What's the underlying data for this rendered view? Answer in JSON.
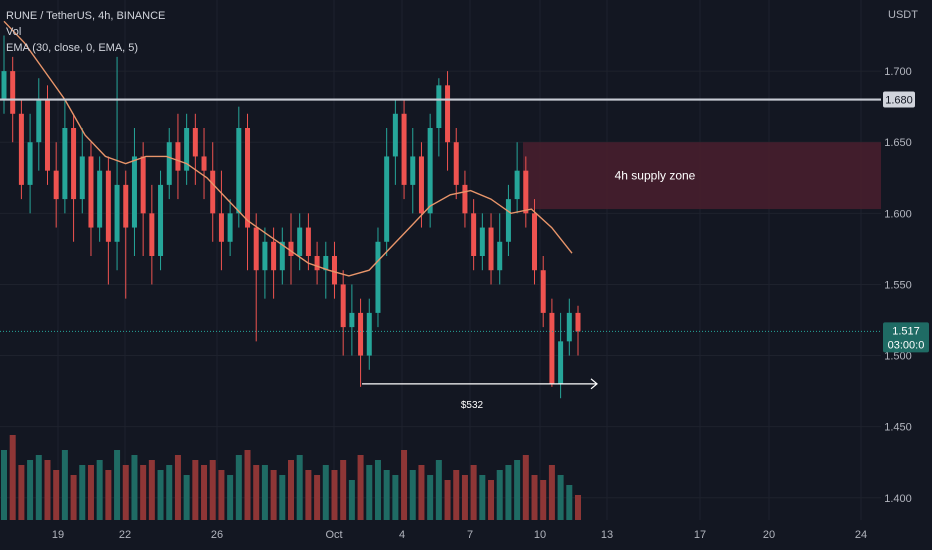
{
  "header": {
    "symbol_line": "RUNE / TetherUS, 4h, BINANCE",
    "volume_label": "Vol",
    "ema_label": "EMA (30, close, 0, EMA, 5)"
  },
  "colors": {
    "background": "#131722",
    "up": "#26a69a",
    "down": "#ef5350",
    "vol_up": "#1f6b64",
    "vol_down": "#8e3636",
    "ema": "#e8956a",
    "resistance": "#c7cbd4",
    "zone": "#4a1f2e",
    "price_badge": "#1f6b64",
    "level_badge": "#d1d4dc"
  },
  "chart_data": {
    "type": "candlestick",
    "currency": "USDT",
    "ylim": [
      1.39,
      1.75
    ],
    "y_ticks": [
      "1.400",
      "1.450",
      "1.500",
      "1.550",
      "1.600",
      "1.650",
      "1.700"
    ],
    "x_tick_labels": [
      "19",
      "22",
      "26",
      "Oct",
      "4",
      "7",
      "10",
      "13",
      "17",
      "20",
      "24"
    ],
    "resistance_level": "1.680",
    "last_price": "1.517",
    "countdown": "03:00:0",
    "zone": {
      "label": "4h supply zone",
      "low": 1.603,
      "high": 1.65
    },
    "support_annotation": "$532",
    "support_level": 1.478,
    "ema_points": [
      1.735,
      1.72,
      1.7,
      1.68,
      1.655,
      1.64,
      1.635,
      1.64,
      1.64,
      1.635,
      1.625,
      1.61,
      1.595,
      1.585,
      1.575,
      1.565,
      1.56,
      1.556,
      1.56,
      1.575,
      1.59,
      1.605,
      1.613,
      1.616,
      1.61,
      1.6,
      1.603,
      1.59,
      1.572
    ],
    "candles": [
      [
        1.68,
        1.7,
        1.725,
        1.67
      ],
      [
        1.7,
        1.67,
        1.71,
        1.65
      ],
      [
        1.67,
        1.62,
        1.68,
        1.61
      ],
      [
        1.62,
        1.65,
        1.67,
        1.6
      ],
      [
        1.65,
        1.68,
        1.695,
        1.63
      ],
      [
        1.68,
        1.63,
        1.69,
        1.62
      ],
      [
        1.63,
        1.61,
        1.65,
        1.59
      ],
      [
        1.61,
        1.66,
        1.68,
        1.6
      ],
      [
        1.66,
        1.61,
        1.67,
        1.58
      ],
      [
        1.61,
        1.64,
        1.66,
        1.6
      ],
      [
        1.64,
        1.59,
        1.65,
        1.57
      ],
      [
        1.59,
        1.63,
        1.64,
        1.58
      ],
      [
        1.63,
        1.58,
        1.64,
        1.55
      ],
      [
        1.58,
        1.62,
        1.71,
        1.56
      ],
      [
        1.62,
        1.59,
        1.63,
        1.54
      ],
      [
        1.59,
        1.64,
        1.66,
        1.57
      ],
      [
        1.64,
        1.6,
        1.65,
        1.57
      ],
      [
        1.6,
        1.57,
        1.62,
        1.55
      ],
      [
        1.57,
        1.62,
        1.63,
        1.56
      ],
      [
        1.62,
        1.65,
        1.66,
        1.61
      ],
      [
        1.65,
        1.63,
        1.67,
        1.61
      ],
      [
        1.63,
        1.66,
        1.67,
        1.62
      ],
      [
        1.66,
        1.64,
        1.67,
        1.62
      ],
      [
        1.64,
        1.63,
        1.66,
        1.61
      ],
      [
        1.63,
        1.6,
        1.65,
        1.58
      ],
      [
        1.6,
        1.58,
        1.63,
        1.56
      ],
      [
        1.58,
        1.6,
        1.61,
        1.57
      ],
      [
        1.6,
        1.66,
        1.675,
        1.59
      ],
      [
        1.66,
        1.59,
        1.67,
        1.56
      ],
      [
        1.59,
        1.56,
        1.6,
        1.51
      ],
      [
        1.56,
        1.58,
        1.59,
        1.54
      ],
      [
        1.58,
        1.56,
        1.59,
        1.54
      ],
      [
        1.56,
        1.58,
        1.59,
        1.55
      ],
      [
        1.58,
        1.57,
        1.6,
        1.55
      ],
      [
        1.57,
        1.59,
        1.6,
        1.56
      ],
      [
        1.59,
        1.57,
        1.6,
        1.56
      ],
      [
        1.57,
        1.56,
        1.58,
        1.55
      ],
      [
        1.56,
        1.57,
        1.58,
        1.54
      ],
      [
        1.57,
        1.55,
        1.58,
        1.54
      ],
      [
        1.55,
        1.52,
        1.56,
        1.5
      ],
      [
        1.52,
        1.53,
        1.55,
        1.5
      ],
      [
        1.53,
        1.5,
        1.54,
        1.478
      ],
      [
        1.5,
        1.53,
        1.54,
        1.49
      ],
      [
        1.53,
        1.58,
        1.59,
        1.52
      ],
      [
        1.58,
        1.64,
        1.66,
        1.57
      ],
      [
        1.64,
        1.67,
        1.68,
        1.62
      ],
      [
        1.67,
        1.62,
        1.68,
        1.61
      ],
      [
        1.62,
        1.64,
        1.66,
        1.6
      ],
      [
        1.64,
        1.6,
        1.65,
        1.59
      ],
      [
        1.6,
        1.66,
        1.67,
        1.59
      ],
      [
        1.66,
        1.69,
        1.695,
        1.64
      ],
      [
        1.69,
        1.65,
        1.7,
        1.63
      ],
      [
        1.65,
        1.62,
        1.66,
        1.61
      ],
      [
        1.62,
        1.6,
        1.63,
        1.59
      ],
      [
        1.6,
        1.57,
        1.61,
        1.56
      ],
      [
        1.57,
        1.59,
        1.6,
        1.56
      ],
      [
        1.59,
        1.56,
        1.6,
        1.55
      ],
      [
        1.56,
        1.58,
        1.6,
        1.55
      ],
      [
        1.58,
        1.61,
        1.62,
        1.57
      ],
      [
        1.61,
        1.63,
        1.65,
        1.6
      ],
      [
        1.63,
        1.6,
        1.64,
        1.59
      ],
      [
        1.6,
        1.56,
        1.61,
        1.55
      ],
      [
        1.56,
        1.53,
        1.57,
        1.52
      ],
      [
        1.53,
        1.48,
        1.54,
        1.478
      ],
      [
        1.48,
        1.51,
        1.53,
        1.47
      ],
      [
        1.51,
        1.53,
        1.54,
        1.5
      ],
      [
        1.53,
        1.517,
        1.535,
        1.5
      ]
    ],
    "volume": [
      14,
      17,
      11,
      12,
      13,
      12,
      10,
      14,
      9,
      11,
      11,
      12,
      10,
      14,
      11,
      13,
      11,
      12,
      10,
      11,
      13,
      9,
      12,
      11,
      12,
      10,
      9,
      13,
      14,
      11,
      11,
      10,
      9,
      12,
      13,
      10,
      9,
      11,
      10,
      12,
      8,
      13,
      11,
      12,
      10,
      9,
      14,
      10,
      11,
      9,
      12,
      8,
      10,
      9,
      11,
      9,
      8,
      10,
      11,
      12,
      13,
      9,
      8,
      11,
      9,
      7,
      5
    ]
  }
}
